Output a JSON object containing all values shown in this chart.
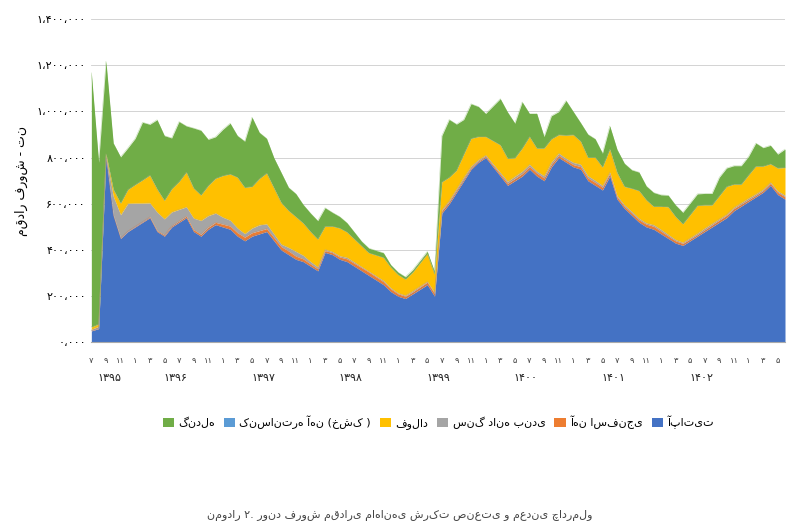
{
  "ylabel": "مقدار فروش - تن",
  "caption": "نمودار ۲. روند فروش مقداری ماهانهی شرکت صنعتی و معدنی چادرملو",
  "ylim": [
    0,
    1400000
  ],
  "yticks": [
    0,
    200000,
    400000,
    600000,
    800000,
    1000000,
    1200000,
    1400000
  ],
  "ytick_labels": [
    "۰،۰۰۰",
    "۲۰۰،۰۰۰",
    "۴۰۰،۰۰۰",
    "۶۰۰،۰۰۰",
    "۸۰۰،۰۰۰",
    "۱،۰۰۰،۰۰۰",
    "۱،۲۰۰،۰۰۰",
    "۱،۴۰۰،۰۰۰"
  ],
  "colors": {
    "apatite": "#4472C4",
    "sponge_iron": "#ED7D31",
    "pellet": "#A5A5A5",
    "steel": "#FFC000",
    "conc_dry": "#5B9BD5",
    "gendele": "#70AD47"
  },
  "legend_labels_rtl": [
    "گندله",
    "کنسانتره آهن (خشک )",
    "فولاد",
    "سنگ دانه بندی",
    "آهن اسفنجی",
    "آپاتیت"
  ],
  "background_color": "#FFFFFF",
  "year_labels": [
    "۱۳۹۵",
    "۱۳۹۶",
    "۱۳۹۷",
    "۱۳۹۸",
    "۱۳۹۹",
    "۱۴۰۰",
    "۱۴۰۱",
    "۱۴۰۲"
  ],
  "apatite": [
    50000,
    60000,
    800000,
    550000,
    450000,
    480000,
    500000,
    520000,
    540000,
    480000,
    460000,
    500000,
    520000,
    540000,
    480000,
    460000,
    490000,
    510000,
    500000,
    490000,
    460000,
    440000,
    460000,
    470000,
    480000,
    440000,
    400000,
    380000,
    360000,
    350000,
    330000,
    310000,
    390000,
    380000,
    360000,
    350000,
    330000,
    310000,
    290000,
    270000,
    250000,
    220000,
    200000,
    190000,
    210000,
    230000,
    250000,
    200000,
    560000,
    600000,
    650000,
    700000,
    750000,
    780000,
    800000,
    760000,
    720000,
    680000,
    700000,
    720000,
    750000,
    720000,
    700000,
    760000,
    800000,
    780000,
    760000,
    750000,
    700000,
    680000,
    660000,
    720000,
    620000,
    580000,
    550000,
    520000,
    500000,
    490000,
    470000,
    450000,
    430000,
    420000,
    440000,
    460000,
    480000,
    500000,
    520000,
    540000,
    570000,
    590000,
    610000,
    630000,
    650000,
    680000,
    640000,
    620000
  ],
  "sponge_iron": [
    2000,
    2000,
    2000,
    3000,
    3000,
    2000,
    3000,
    3000,
    4000,
    4000,
    5000,
    5000,
    6000,
    7000,
    8000,
    8000,
    9000,
    10000,
    12000,
    14000,
    15000,
    16000,
    15000,
    14000,
    13000,
    14000,
    15000,
    16000,
    14000,
    12000,
    10000,
    9000,
    8000,
    9000,
    10000,
    12000,
    13000,
    14000,
    15000,
    14000,
    13000,
    12000,
    11000,
    10000,
    9000,
    10000,
    11000,
    12000,
    10000,
    9000,
    8000,
    7000,
    6000,
    5000,
    6000,
    7000,
    8000,
    9000,
    10000,
    11000,
    12000,
    13000,
    12000,
    11000,
    10000,
    9000,
    10000,
    11000,
    12000,
    13000,
    12000,
    11000,
    10000,
    9000,
    10000,
    11000,
    12000,
    13000,
    12000,
    11000,
    10000,
    9000,
    8000,
    7000,
    8000,
    9000,
    10000,
    11000,
    10000,
    9000,
    8000,
    7000,
    8000,
    9000,
    10000,
    11000
  ],
  "pellet": [
    5000,
    8000,
    5000,
    80000,
    100000,
    120000,
    100000,
    80000,
    60000,
    80000,
    70000,
    60000,
    50000,
    40000,
    50000,
    60000,
    50000,
    40000,
    30000,
    25000,
    20000,
    15000,
    20000,
    25000,
    20000,
    15000,
    10000,
    15000,
    20000,
    15000,
    10000,
    8000,
    5000,
    4000,
    5000,
    6000,
    5000,
    4000,
    3000,
    4000,
    5000,
    4000,
    3000,
    4000,
    5000,
    4000,
    3000,
    4000,
    5000,
    6000,
    7000,
    8000,
    7000,
    6000,
    5000,
    6000,
    7000,
    8000,
    9000,
    10000,
    9000,
    8000,
    9000,
    10000,
    9000,
    8000,
    9000,
    10000,
    9000,
    8000,
    7000,
    6000,
    5000,
    6000,
    7000,
    6000,
    5000,
    6000,
    7000,
    6000,
    5000,
    4000,
    5000,
    6000,
    7000,
    6000,
    5000,
    4000,
    5000,
    6000,
    7000,
    6000,
    5000,
    4000,
    5000,
    6000
  ],
  "steel": [
    10000,
    10000,
    10000,
    30000,
    50000,
    60000,
    80000,
    100000,
    120000,
    100000,
    80000,
    100000,
    120000,
    150000,
    130000,
    110000,
    130000,
    150000,
    180000,
    200000,
    220000,
    200000,
    180000,
    200000,
    220000,
    200000,
    180000,
    160000,
    150000,
    140000,
    130000,
    120000,
    100000,
    110000,
    120000,
    110000,
    100000,
    90000,
    80000,
    90000,
    100000,
    90000,
    80000,
    70000,
    80000,
    100000,
    120000,
    80000,
    120000,
    100000,
    80000,
    100000,
    120000,
    100000,
    80000,
    100000,
    120000,
    100000,
    80000,
    100000,
    120000,
    100000,
    120000,
    100000,
    80000,
    100000,
    120000,
    100000,
    80000,
    100000,
    80000,
    100000,
    100000,
    80000,
    100000,
    120000,
    100000,
    80000,
    100000,
    120000,
    100000,
    80000,
    100000,
    120000,
    100000,
    80000,
    100000,
    120000,
    100000,
    80000,
    100000,
    120000,
    100000,
    80000,
    100000,
    120000
  ],
  "conc_dry": [
    0,
    0,
    0,
    0,
    0,
    0,
    0,
    0,
    0,
    0,
    0,
    0,
    0,
    0,
    0,
    0,
    0,
    0,
    0,
    0,
    0,
    0,
    0,
    0,
    0,
    0,
    0,
    0,
    0,
    0,
    0,
    0,
    0,
    0,
    0,
    0,
    0,
    0,
    0,
    0,
    0,
    0,
    0,
    0,
    0,
    0,
    0,
    0,
    0,
    0,
    0,
    0,
    0,
    0,
    0,
    0,
    0,
    0,
    0,
    0,
    0,
    0,
    0,
    0,
    0,
    0,
    0,
    0,
    0,
    0,
    0,
    0,
    0,
    0,
    0,
    0,
    0,
    0,
    0,
    0,
    0,
    0,
    0,
    0,
    0,
    0,
    0,
    0,
    0,
    0,
    0,
    0,
    0,
    0,
    0,
    0
  ],
  "gendele": [
    1100000,
    700000,
    400000,
    200000,
    200000,
    180000,
    200000,
    250000,
    220000,
    300000,
    280000,
    220000,
    260000,
    200000,
    260000,
    280000,
    200000,
    180000,
    200000,
    220000,
    180000,
    200000,
    300000,
    200000,
    150000,
    130000,
    130000,
    100000,
    100000,
    80000,
    80000,
    80000,
    80000,
    60000,
    50000,
    40000,
    30000,
    20000,
    20000,
    20000,
    20000,
    10000,
    10000,
    10000,
    10000,
    10000,
    10000,
    10000,
    200000,
    250000,
    200000,
    150000,
    150000,
    130000,
    100000,
    150000,
    200000,
    200000,
    150000,
    200000,
    100000,
    150000,
    50000,
    100000,
    100000,
    150000,
    100000,
    80000,
    100000,
    80000,
    60000,
    100000,
    100000,
    100000,
    80000,
    80000,
    60000,
    60000,
    50000,
    50000,
    50000,
    50000,
    50000,
    50000,
    50000,
    50000,
    80000,
    80000,
    80000,
    80000,
    80000,
    100000,
    80000,
    80000,
    60000,
    80000
  ]
}
